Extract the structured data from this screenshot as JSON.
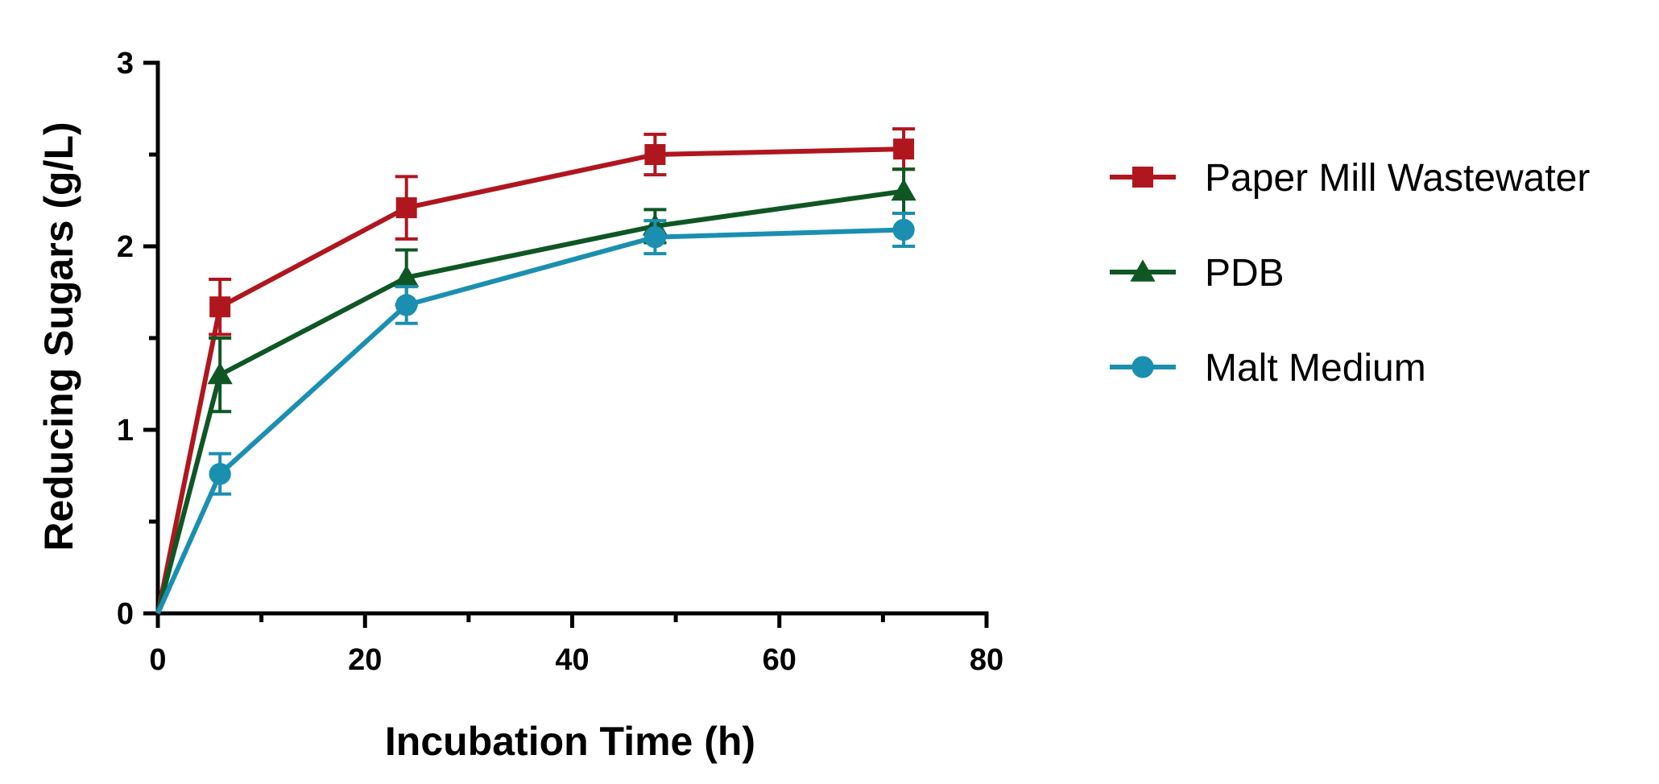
{
  "chart_data": {
    "type": "line",
    "title": "",
    "xlabel": "Incubation Time (h)",
    "ylabel": "Reducing Sugars (g/L)",
    "xlim": [
      0,
      80
    ],
    "ylim": [
      0,
      3
    ],
    "xticks": [
      0,
      20,
      40,
      60,
      80
    ],
    "xticks_minor": [
      10,
      30,
      50,
      70
    ],
    "yticks": [
      0,
      1,
      2,
      3
    ],
    "yticks_minor": [
      0.5,
      1.5,
      2.5
    ],
    "grid": false,
    "legend_position": "right",
    "series": [
      {
        "name": "Paper Mill Wastewater",
        "marker": "square",
        "color": "#b0161e",
        "x": [
          0,
          6,
          24,
          48,
          72
        ],
        "y": [
          0,
          1.67,
          2.21,
          2.5,
          2.53
        ],
        "err": [
          0,
          0.15,
          0.17,
          0.11,
          0.11
        ]
      },
      {
        "name": "PDB",
        "marker": "triangle",
        "color": "#0e5724",
        "x": [
          0,
          6,
          24,
          48,
          72
        ],
        "y": [
          0,
          1.3,
          1.83,
          2.11,
          2.3
        ],
        "err": [
          0,
          0.2,
          0.15,
          0.09,
          0.12
        ]
      },
      {
        "name": "Malt Medium",
        "marker": "circle",
        "color": "#1b8fb0",
        "x": [
          0,
          6,
          24,
          48,
          72
        ],
        "y": [
          0,
          0.76,
          1.68,
          2.05,
          2.09
        ],
        "err": [
          0,
          0.11,
          0.1,
          0.09,
          0.09
        ]
      }
    ]
  }
}
